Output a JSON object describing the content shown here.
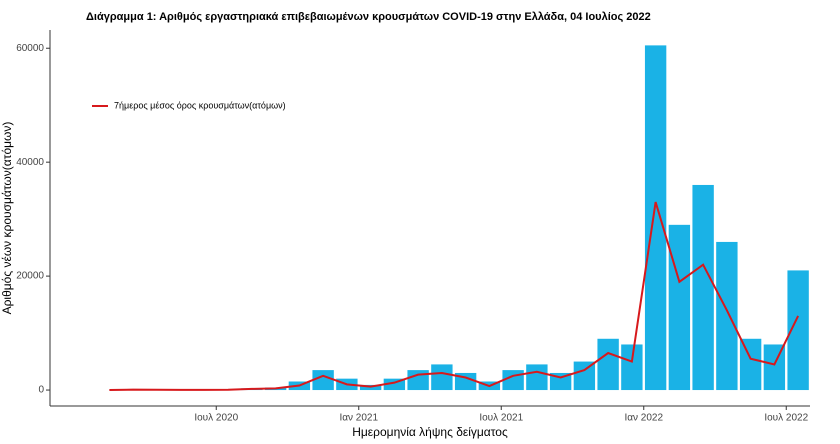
{
  "chart_data": {
    "type": "bar",
    "title": "Διάγραμμα 1: Αριθμός εργαστηριακά επιβεβαιωμένων κρουσμάτων COVID-19 στην Ελλάδα, 04 Ιουλίος 2022",
    "x_label": "Ημερομηνία λήψης δείγματος",
    "y_label": "Αριθμός νέων κρουσμάτων(ατόμων)",
    "x": [
      "2020-02",
      "2020-03",
      "2020-04",
      "2020-05",
      "2020-06",
      "2020-07",
      "2020-08",
      "2020-09",
      "2020-10",
      "2020-11",
      "2020-12",
      "2021-01",
      "2021-02",
      "2021-03",
      "2021-04",
      "2021-05",
      "2021-06",
      "2021-07",
      "2021-08",
      "2021-09",
      "2021-10",
      "2021-11",
      "2021-12",
      "2022-01",
      "2022-02",
      "2022-03",
      "2022-04",
      "2022-05",
      "2022-06",
      "2022-07"
    ],
    "series": [
      {
        "type": "bar",
        "color": "#1ab2e6",
        "values": [
          0,
          100,
          150,
          50,
          80,
          100,
          300,
          450,
          1500,
          3500,
          2000,
          900,
          2000,
          3500,
          4500,
          3000,
          1500,
          3500,
          4500,
          3000,
          5000,
          9000,
          8000,
          60500,
          29000,
          36000,
          26000,
          9000,
          8000,
          21000
        ]
      },
      {
        "type": "line",
        "name": "7ήμερος μέσος όρος κρουσμάτων(ατόμων)",
        "color": "#d7191c",
        "values": [
          0,
          80,
          60,
          20,
          30,
          50,
          200,
          300,
          800,
          2500,
          1000,
          600,
          1300,
          2700,
          3000,
          2200,
          700,
          2500,
          3200,
          2200,
          3500,
          6500,
          5000,
          33000,
          19000,
          22000,
          14000,
          5500,
          4500,
          13000
        ]
      }
    ],
    "xlim": [
      "2019-12",
      "2022-08"
    ],
    "xticks": [
      {
        "value": "2020-07",
        "label": "Ιουλ 2020"
      },
      {
        "value": "2021-01",
        "label": "Ιαν 2021"
      },
      {
        "value": "2021-07",
        "label": "Ιουλ 2021"
      },
      {
        "value": "2022-01",
        "label": "Ιαν 2022"
      },
      {
        "value": "2022-07",
        "label": "Ιουλ 2022"
      }
    ],
    "ylim": [
      -2800,
      63200
    ],
    "yticks": [
      0,
      20000,
      40000,
      60000
    ],
    "legend": "top-left"
  }
}
